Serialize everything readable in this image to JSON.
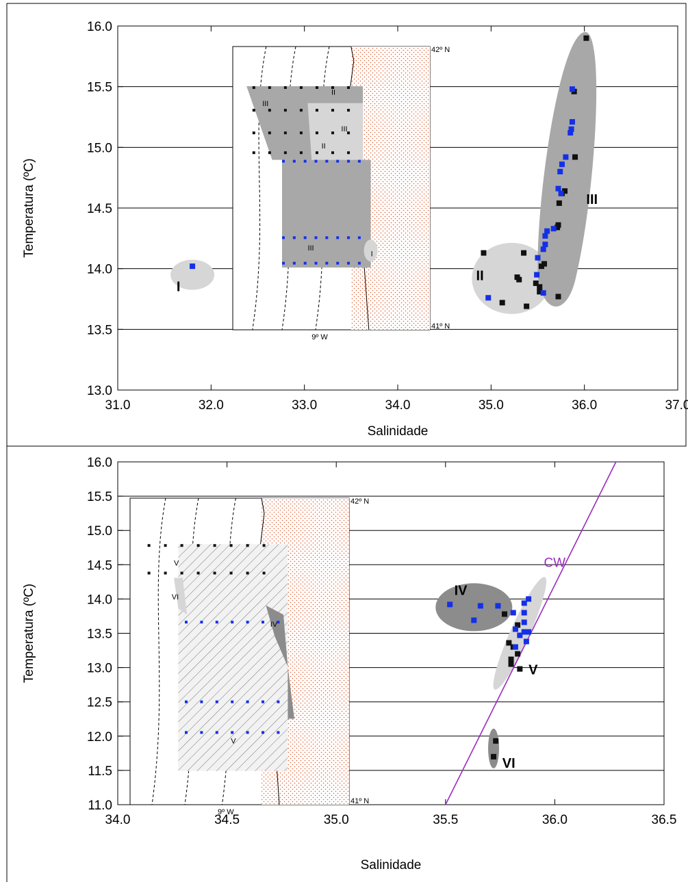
{
  "chart_data": [
    {
      "type": "scatter",
      "xlabel": "Salinidade",
      "ylabel": "Temperatura (ºC)",
      "xlim": [
        31.0,
        37.0
      ],
      "ylim": [
        13.0,
        16.0
      ],
      "xticks": [
        "31.0",
        "32.0",
        "33.0",
        "34.0",
        "35.0",
        "36.0",
        "37.0"
      ],
      "yticks": [
        "13.0",
        "13.5",
        "14.0",
        "14.5",
        "15.0",
        "15.5",
        "16.0"
      ],
      "grid": "horizontal",
      "inset_map": {
        "lat_top": "42º N",
        "lat_bottom": "41º N",
        "lon": "9º W",
        "regions": [
          "III",
          "II",
          "III",
          "II",
          "III",
          "I"
        ]
      },
      "groups": [
        {
          "label": "I",
          "blue": [
            [
              31.8,
              14.02
            ]
          ],
          "black": []
        },
        {
          "label": "II",
          "blue": [
            [
              34.97,
              13.76
            ]
          ],
          "black": [
            [
              34.92,
              14.13
            ],
            [
              35.12,
              13.72
            ],
            [
              35.28,
              13.93
            ],
            [
              35.3,
              13.91
            ],
            [
              35.35,
              14.13
            ],
            [
              35.38,
              13.69
            ]
          ]
        },
        {
          "label": "III",
          "blue": [
            [
              35.87,
              15.48
            ],
            [
              35.87,
              15.21
            ],
            [
              35.86,
              15.15
            ],
            [
              35.85,
              15.12
            ],
            [
              35.8,
              14.92
            ],
            [
              35.76,
              14.86
            ],
            [
              35.74,
              14.8
            ],
            [
              35.72,
              14.66
            ],
            [
              35.75,
              14.62
            ],
            [
              35.67,
              14.33
            ],
            [
              35.6,
              14.31
            ],
            [
              35.58,
              14.27
            ],
            [
              35.58,
              14.2
            ],
            [
              35.56,
              14.16
            ],
            [
              35.5,
              14.09
            ],
            [
              35.49,
              13.95
            ],
            [
              35.56,
              13.8
            ]
          ],
          "black": [
            [
              36.02,
              15.9
            ],
            [
              35.89,
              15.46
            ],
            [
              35.9,
              14.92
            ],
            [
              35.79,
              14.64
            ],
            [
              35.76,
              14.62
            ],
            [
              35.73,
              14.54
            ],
            [
              35.72,
              14.36
            ],
            [
              35.71,
              14.34
            ],
            [
              35.57,
              14.04
            ],
            [
              35.54,
              14.02
            ],
            [
              35.48,
              13.88
            ],
            [
              35.52,
              13.85
            ],
            [
              35.52,
              13.81
            ],
            [
              35.72,
              13.77
            ]
          ]
        }
      ]
    },
    {
      "type": "scatter",
      "xlabel": "Salinidade",
      "ylabel": "Temperatura (ºC)",
      "xlim": [
        34.0,
        36.5
      ],
      "ylim": [
        11.0,
        16.0
      ],
      "xticks": [
        "34.0",
        "34.5",
        "35.0",
        "35.5",
        "36.0",
        "36.5"
      ],
      "yticks": [
        "11.0",
        "11.5",
        "12.0",
        "12.5",
        "13.0",
        "13.5",
        "14.0",
        "14.5",
        "15.0",
        "15.5",
        "16.0"
      ],
      "grid": "horizontal",
      "cw_line": {
        "label": "CW",
        "points": [
          [
            35.5,
            11.0
          ],
          [
            36.28,
            16.0
          ]
        ]
      },
      "inset_map": {
        "lat_top": "42º N",
        "lat_bottom": "41º N",
        "lon": "9º W",
        "regions": [
          "V",
          "VI",
          "IV",
          "V"
        ]
      },
      "groups": [
        {
          "label": "IV",
          "blue": [
            [
              35.52,
              13.92
            ],
            [
              35.63,
              13.69
            ],
            [
              35.66,
              13.9
            ],
            [
              35.74,
              13.9
            ]
          ],
          "black": []
        },
        {
          "label": "V",
          "blue": [
            [
              35.88,
              14.0
            ],
            [
              35.86,
              13.94
            ],
            [
              35.81,
              13.8
            ],
            [
              35.86,
              13.8
            ],
            [
              35.86,
              13.66
            ],
            [
              35.82,
              13.56
            ],
            [
              35.86,
              13.52
            ],
            [
              35.88,
              13.52
            ],
            [
              35.84,
              13.47
            ],
            [
              35.87,
              13.38
            ],
            [
              35.82,
              13.3
            ]
          ],
          "black": [
            [
              35.77,
              13.78
            ],
            [
              35.83,
              13.62
            ],
            [
              35.79,
              13.36
            ],
            [
              35.81,
              13.3
            ],
            [
              35.83,
              13.2
            ],
            [
              35.8,
              13.12
            ],
            [
              35.8,
              13.05
            ],
            [
              35.84,
              12.98
            ]
          ]
        },
        {
          "label": "VI",
          "blue": [],
          "black": [
            [
              35.73,
              11.93
            ],
            [
              35.72,
              11.7
            ]
          ]
        }
      ]
    }
  ],
  "colors": {
    "blue_marker": "#1430e6",
    "black_marker": "#111111",
    "dark_region": "#a8a8a8",
    "light_region": "#d6d6d6",
    "darker_region": "#8c8c8c",
    "cw_line": "#9a2bc0",
    "land": "#e05a2a"
  }
}
